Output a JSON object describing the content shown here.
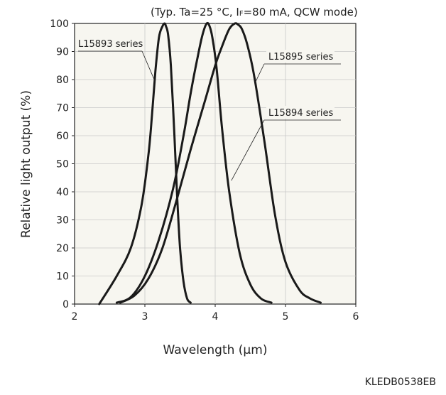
{
  "chart_data": {
    "type": "line",
    "condition": "(Typ. Ta=25 °C, IF=80 mA, QCW mode)",
    "condition_parts": {
      "prefix": "(Typ. Ta=25 °C, I",
      "subscript": "F",
      "suffix": "=80 mA, QCW mode)"
    },
    "xlabel": "Wavelength (µm)",
    "ylabel": "Relative light output (%)",
    "xlim": [
      2,
      6
    ],
    "ylim": [
      0,
      100
    ],
    "xticks": [
      "2",
      "3",
      "4",
      "5",
      "6"
    ],
    "yticks": [
      "0",
      "10",
      "20",
      "30",
      "40",
      "50",
      "60",
      "70",
      "80",
      "90",
      "100"
    ],
    "grid": true,
    "series": [
      {
        "name": "L15893 series",
        "x": [
          2.35,
          2.6,
          2.8,
          2.95,
          3.05,
          3.1,
          3.15,
          3.2,
          3.25,
          3.28,
          3.3,
          3.33,
          3.37,
          3.42,
          3.46,
          3.5,
          3.55,
          3.6,
          3.65
        ],
        "y": [
          0,
          10,
          20,
          35,
          53,
          67,
          83,
          95,
          99,
          100,
          99,
          96,
          85,
          60,
          38,
          20,
          8,
          2,
          0.5
        ]
      },
      {
        "name": "L15894 series",
        "x": [
          2.6,
          2.8,
          3.0,
          3.2,
          3.4,
          3.55,
          3.65,
          3.75,
          3.82,
          3.88,
          3.92,
          3.96,
          4.02,
          4.1,
          4.2,
          4.35,
          4.5,
          4.65,
          4.8
        ],
        "y": [
          0.5,
          2.5,
          10,
          23,
          41,
          60,
          75,
          88,
          96,
          100,
          99,
          95,
          84,
          62,
          40,
          18,
          7,
          2,
          0.5
        ]
      },
      {
        "name": "L15895 series",
        "x": [
          2.65,
          2.85,
          3.05,
          3.25,
          3.45,
          3.65,
          3.85,
          4.0,
          4.1,
          4.2,
          4.28,
          4.33,
          4.38,
          4.45,
          4.55,
          4.7,
          4.85,
          5.0,
          5.2,
          5.35,
          5.5
        ],
        "y": [
          0.5,
          3,
          9,
          20,
          37,
          55,
          72,
          85,
          92,
          98,
          100,
          99.5,
          98,
          93,
          82,
          58,
          32,
          15,
          5,
          2,
          0.5
        ]
      }
    ],
    "annotations": [
      "L15893 series",
      "L15895 series",
      "L15894 series"
    ],
    "code": "KLEDB0538EB"
  }
}
